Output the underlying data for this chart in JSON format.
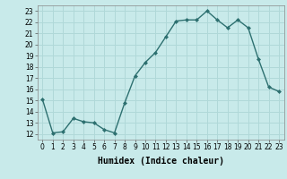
{
  "x": [
    0,
    1,
    2,
    3,
    4,
    5,
    6,
    7,
    8,
    9,
    10,
    11,
    12,
    13,
    14,
    15,
    16,
    17,
    18,
    19,
    20,
    21,
    22,
    23
  ],
  "y": [
    15.1,
    12.1,
    12.2,
    13.4,
    13.1,
    13.0,
    12.4,
    12.1,
    14.8,
    17.2,
    18.4,
    19.3,
    20.7,
    22.1,
    22.2,
    22.2,
    23.0,
    22.2,
    21.5,
    22.2,
    21.5,
    18.7,
    16.2,
    15.8
  ],
  "line_color": "#2d7070",
  "marker": "D",
  "marker_size": 2.0,
  "linewidth": 1.0,
  "bg_color": "#c8eaea",
  "grid_color": "#b0d8d8",
  "xlabel": "Humidex (Indice chaleur)",
  "xlabel_fontsize": 7,
  "tick_fontsize": 5.5,
  "ylim": [
    11.5,
    23.5
  ],
  "xlim": [
    -0.5,
    23.5
  ],
  "yticks": [
    12,
    13,
    14,
    15,
    16,
    17,
    18,
    19,
    20,
    21,
    22,
    23
  ],
  "xticks": [
    0,
    1,
    2,
    3,
    4,
    5,
    6,
    7,
    8,
    9,
    10,
    11,
    12,
    13,
    14,
    15,
    16,
    17,
    18,
    19,
    20,
    21,
    22,
    23
  ]
}
